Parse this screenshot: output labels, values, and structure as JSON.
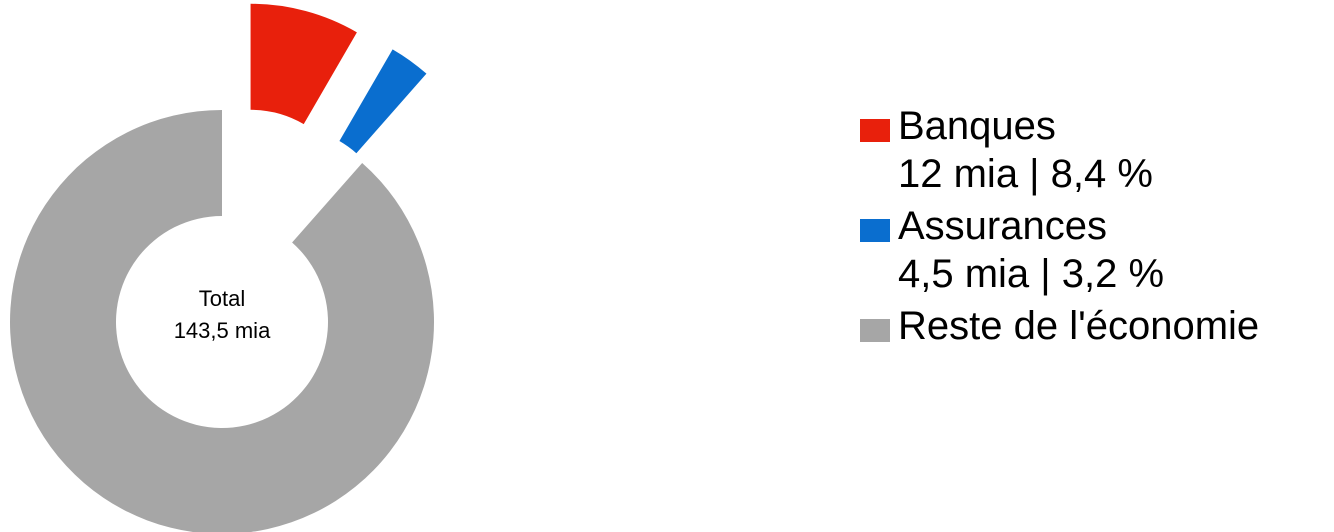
{
  "chart_data": {
    "type": "pie",
    "style": "donut",
    "center_label": [
      "Total",
      "143,5 mia"
    ],
    "slices": [
      {
        "name": "Banques",
        "value": 12,
        "percent": 8.4,
        "detail": "12 mia | 8,4 %",
        "color": "#e8200c",
        "exploded": true
      },
      {
        "name": "Assurances",
        "value": 4.5,
        "percent": 3.2,
        "detail": "4,5 mia | 3,2 %",
        "color": "#0a6ecf",
        "exploded": true
      },
      {
        "name": "Reste de l'économie",
        "value": 127,
        "percent": 88.4,
        "detail": "",
        "color": "#a6a6a6",
        "exploded": false
      }
    ],
    "legend_position": "right"
  }
}
